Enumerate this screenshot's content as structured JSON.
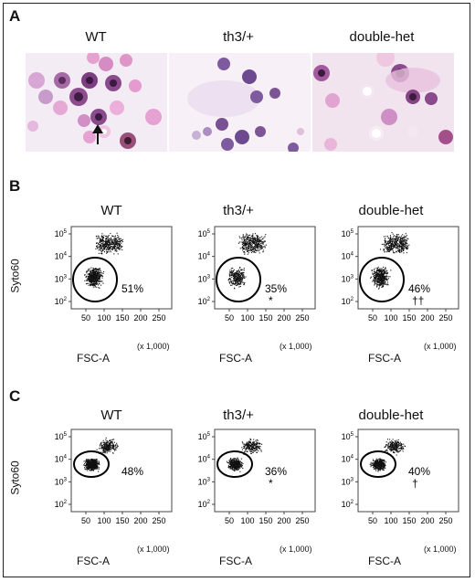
{
  "panels": [
    {
      "letter": "A",
      "titles": [
        "WT",
        "th3/+",
        "double-het"
      ]
    },
    {
      "letter": "B",
      "titles": [
        "WT",
        "th3/+",
        "double-het"
      ],
      "percents": [
        "51%",
        "35%",
        "46%"
      ],
      "marks": [
        "",
        "*",
        "††"
      ]
    },
    {
      "letter": "C",
      "titles": [
        "WT",
        "th3/+",
        "double-het"
      ],
      "percents": [
        "48%",
        "36%",
        "40%"
      ],
      "marks": [
        "",
        "*",
        "†"
      ]
    }
  ],
  "axes": {
    "ylabel": "Syto60",
    "xlabel": "FSC-A",
    "xunit": "(x 1,000)",
    "xticks": [
      "50",
      "100",
      "150",
      "200",
      "250"
    ],
    "yticks": [
      "10^5",
      "10^4",
      "10^3",
      "10^2"
    ]
  },
  "chart_data": [
    {
      "type": "scatter",
      "panel": "B",
      "title": "WT",
      "xlabel": "FSC-A",
      "ylabel": "Syto60",
      "gate_percent": 51
    },
    {
      "type": "scatter",
      "panel": "B",
      "title": "th3/+",
      "xlabel": "FSC-A",
      "ylabel": "Syto60",
      "gate_percent": 35
    },
    {
      "type": "scatter",
      "panel": "B",
      "title": "double-het",
      "xlabel": "FSC-A",
      "ylabel": "Syto60",
      "gate_percent": 46
    },
    {
      "type": "scatter",
      "panel": "C",
      "title": "WT",
      "xlabel": "FSC-A",
      "ylabel": "Syto60",
      "gate_percent": 48
    },
    {
      "type": "scatter",
      "panel": "C",
      "title": "th3/+",
      "xlabel": "FSC-A",
      "ylabel": "Syto60",
      "gate_percent": 36
    },
    {
      "type": "scatter",
      "panel": "C",
      "title": "double-het",
      "xlabel": "FSC-A",
      "ylabel": "Syto60",
      "gate_percent": 40
    }
  ]
}
